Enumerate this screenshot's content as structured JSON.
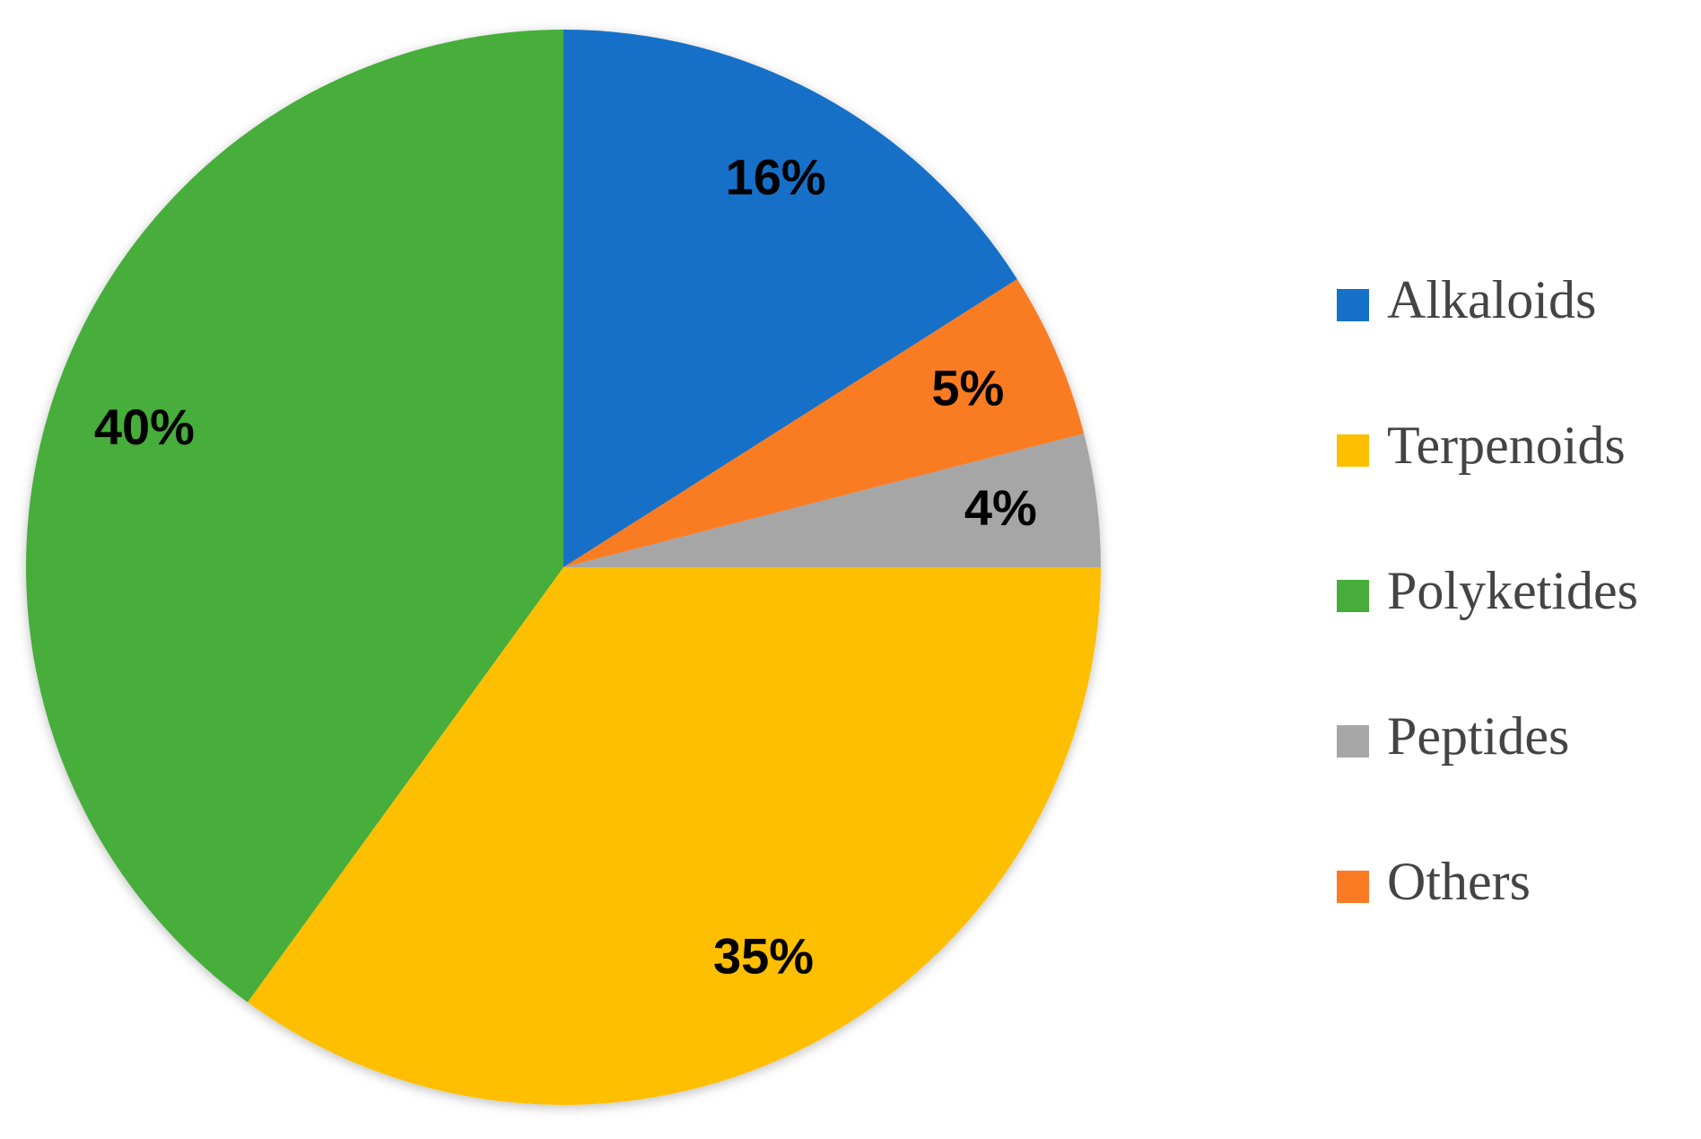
{
  "chart_data": {
    "type": "pie",
    "categories": [
      "Alkaloids",
      "Others",
      "Peptides",
      "Terpenoids",
      "Polyketides"
    ],
    "values": [
      16,
      5,
      4,
      35,
      40
    ],
    "value_labels": [
      "16%",
      "5%",
      "4%",
      "35%",
      "40%"
    ],
    "colors": [
      "#1570c8",
      "#fa7b24",
      "#a6a6a6",
      "#fdbf00",
      "#46ad3b"
    ],
    "legend": [
      "Alkaloids",
      "Terpenoids",
      "Polyketides",
      "Peptides",
      "Others"
    ]
  }
}
